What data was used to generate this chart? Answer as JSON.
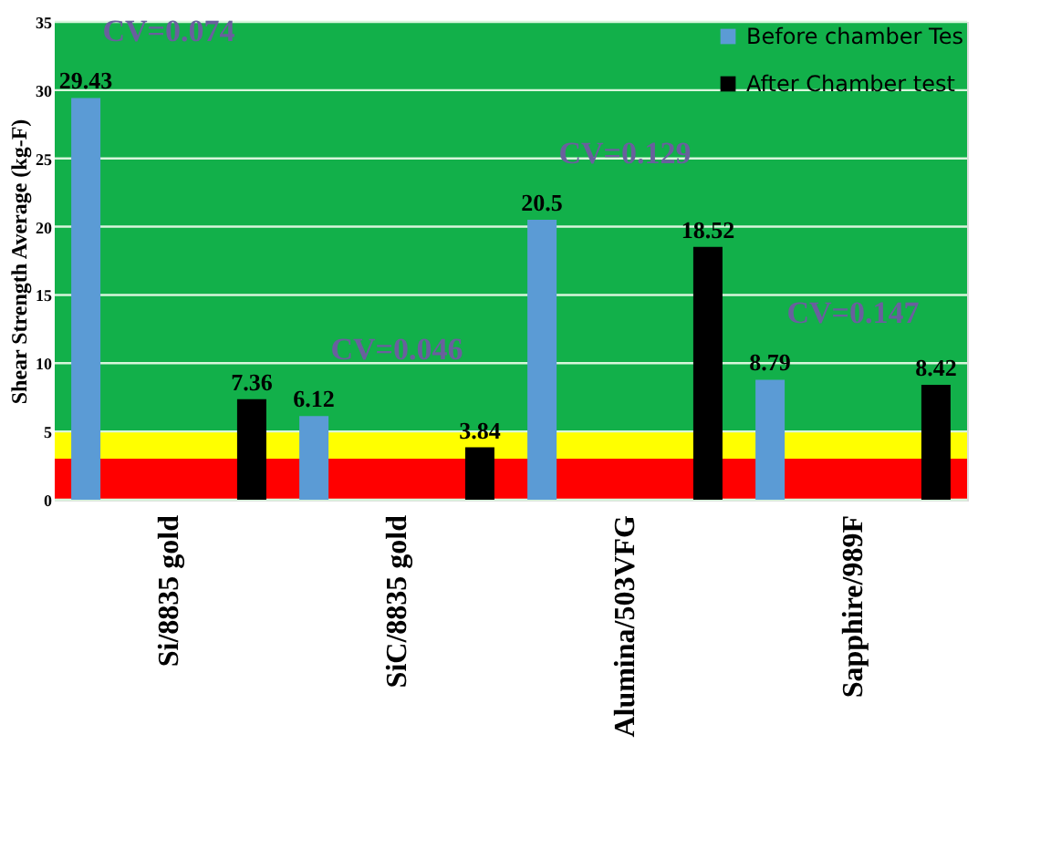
{
  "chart_data": {
    "type": "bar",
    "ylabel": "Shear Strength Average (kg-F)",
    "categories": [
      "Si/8835 gold",
      "SiC/8835 gold",
      "Alumina/503VFG",
      "Sapphire/989F"
    ],
    "series": [
      {
        "name": "Before chamber Tes",
        "color": "#5b9bd5",
        "values": [
          29.43,
          6.12,
          20.5,
          8.79
        ]
      },
      {
        "name": "After Chamber test",
        "color": "#000000",
        "values": [
          7.36,
          3.84,
          18.52,
          8.42
        ]
      }
    ],
    "data_labels": true,
    "ylim": [
      0,
      35
    ],
    "yticks": [
      0,
      5,
      10,
      15,
      20,
      25,
      30,
      35
    ],
    "grid": "y",
    "legend": "top right",
    "bands": [
      {
        "axis": "y",
        "from": 5,
        "to": 35,
        "color": "#12b04a"
      },
      {
        "axis": "y",
        "from": 3,
        "to": 5,
        "color": "#ffff00"
      },
      {
        "axis": "y",
        "from": 0,
        "to": 3,
        "color": "#ff0000"
      }
    ],
    "annotations": [
      "CV=0.074",
      "CV=0.046",
      "CV=0.129",
      "CV=0.147"
    ]
  }
}
